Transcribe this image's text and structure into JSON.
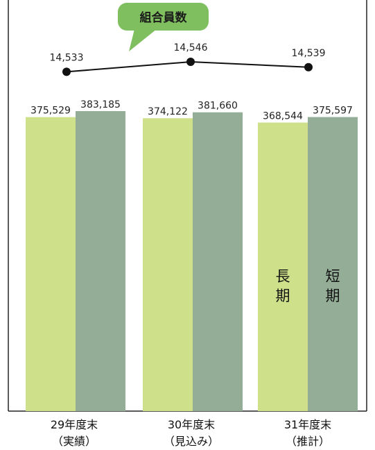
{
  "chart_data": {
    "type": "bar",
    "categories": [
      "29年度末",
      "30年度末",
      "31年度末"
    ],
    "category_sublabels": [
      "（実績）",
      "（見込み）",
      "（推計）"
    ],
    "series": [
      {
        "name": "長期",
        "values": [
          375529,
          374122,
          368544
        ],
        "color": "#cfe08b"
      },
      {
        "name": "短期",
        "values": [
          383185,
          381660,
          375597
        ],
        "color": "#93ad97"
      }
    ],
    "bar_value_labels": [
      [
        "375,529",
        "374,122",
        "368,544"
      ],
      [
        "383,185",
        "381,660",
        "375,597"
      ]
    ],
    "in_bar_labels": {
      "long": [
        "長",
        "期"
      ],
      "short": [
        "短",
        "期"
      ]
    },
    "line": {
      "name": "組合員数",
      "values": [
        14533,
        14546,
        14539
      ],
      "labels": [
        "14,533",
        "14,546",
        "14,539"
      ],
      "color": "#111111"
    },
    "callout": {
      "text": "組合員数",
      "color": "#7fbf5f"
    },
    "bar_ylim": [
      0,
      383185
    ],
    "line_ylim": [
      14527,
      14556
    ],
    "grid": false,
    "legend": "none"
  }
}
